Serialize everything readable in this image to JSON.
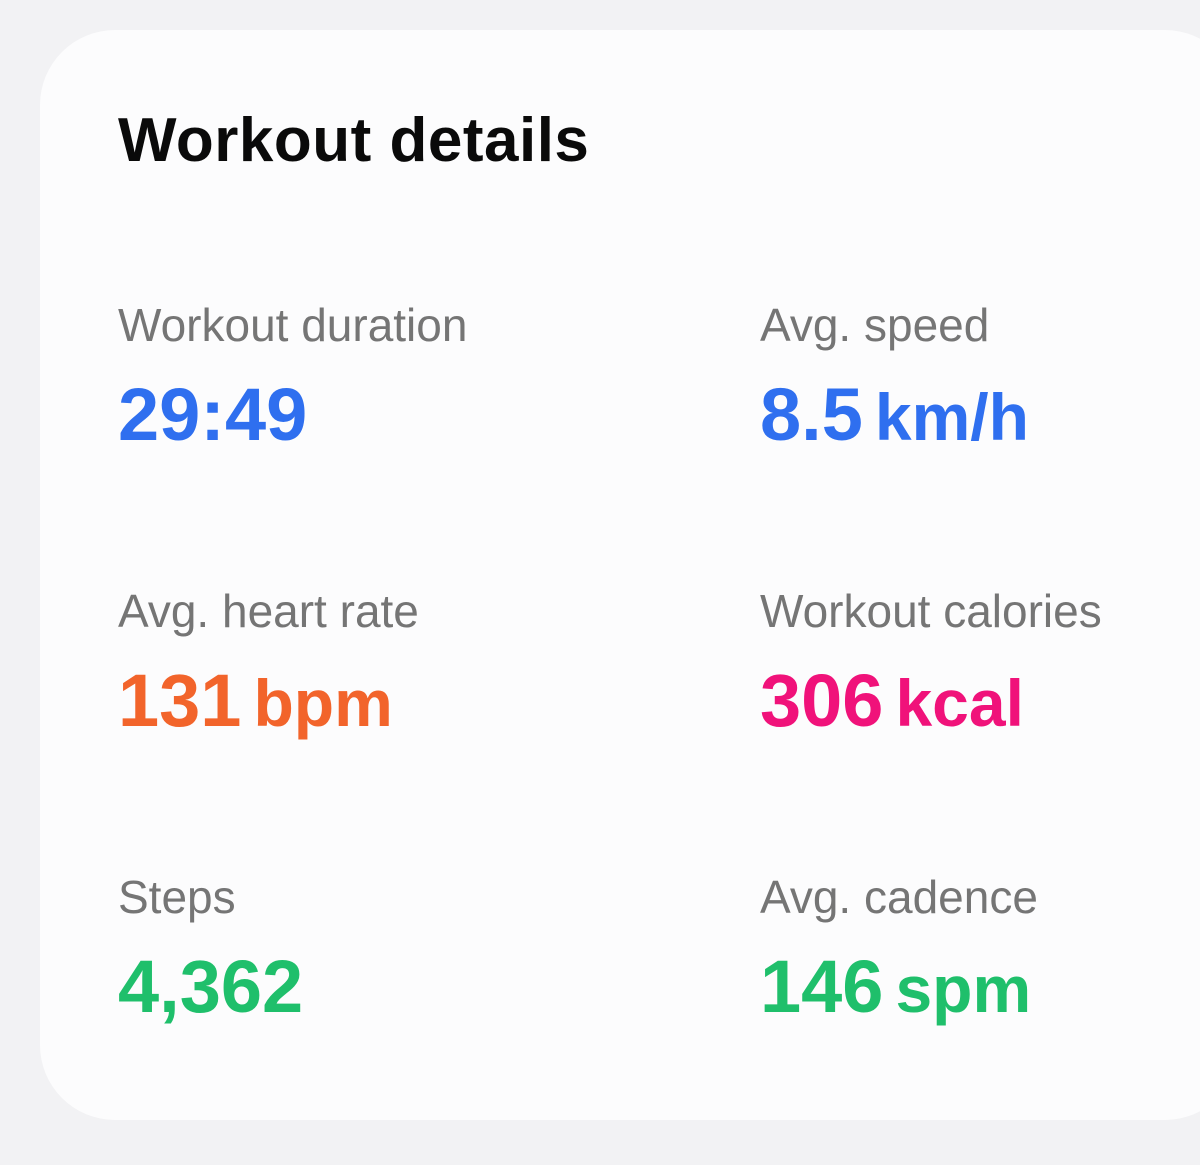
{
  "card": {
    "title": "Workout details"
  },
  "metrics": [
    {
      "label": "Workout duration",
      "value": "29:49",
      "unit": "",
      "color": "#2f6fef"
    },
    {
      "label": "Avg. speed",
      "value": "8.5",
      "unit": "km/h",
      "color": "#2f6fef"
    },
    {
      "label": "Avg. heart rate",
      "value": "131",
      "unit": "bpm",
      "color": "#f2642b"
    },
    {
      "label": "Workout calories",
      "value": "306",
      "unit": "kcal",
      "color": "#f0127a"
    },
    {
      "label": "Steps",
      "value": "4,362",
      "unit": "",
      "color": "#1fbf6b"
    },
    {
      "label": "Avg. cadence",
      "value": "146",
      "unit": "spm",
      "color": "#1fbf6b"
    }
  ]
}
